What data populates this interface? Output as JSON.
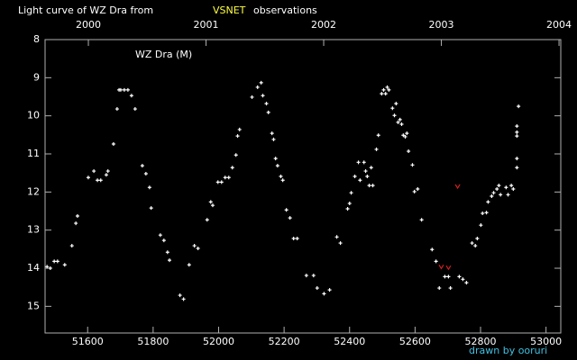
{
  "chart_data": {
    "type": "scatter",
    "title": "Light curve of WZ Dra from",
    "title_highlight": "VSNET",
    "title_end": "observations",
    "annotation": "WZ Dra (M)",
    "credit": "drawn by ooruri",
    "xlim": [
      51470,
      53045
    ],
    "xticks": [
      51600,
      51800,
      52000,
      52200,
      52400,
      52600,
      52800,
      53000
    ],
    "x2lim": [
      1999.632,
      2004.015
    ],
    "x2ticks": [
      2000,
      2001,
      2002,
      2003,
      2004
    ],
    "ylim": [
      8,
      15.7
    ],
    "y_inverted": true,
    "yticks": [
      8,
      9,
      10,
      11,
      12,
      13,
      14,
      15
    ],
    "series": [
      {
        "color": "#ffffff",
        "marker": "+",
        "x": [
          51476,
          51486,
          51498,
          51508,
          51530,
          51552,
          51564,
          51569,
          51602,
          51619,
          51630,
          51640,
          51657,
          51662,
          51679,
          51690,
          51696,
          51701,
          51712,
          51723,
          51734,
          51745,
          51767,
          51778,
          51789,
          51794,
          51822,
          51833,
          51844,
          51850,
          51882,
          51893,
          51910,
          51926,
          51937,
          51965,
          51976,
          51982,
          51998,
          52009,
          52020,
          52031,
          52042,
          52053,
          52058,
          52064,
          52102,
          52119,
          52130,
          52135,
          52146,
          52152,
          52163,
          52168,
          52174,
          52180,
          52190,
          52196,
          52207,
          52218,
          52229,
          52240,
          52268,
          52290,
          52301,
          52322,
          52339,
          52361,
          52372,
          52394,
          52400,
          52405,
          52416,
          52427,
          52432,
          52444,
          52449,
          52454,
          52460,
          52466,
          52471,
          52482,
          52488,
          52498,
          52504,
          52510,
          52515,
          52520,
          52531,
          52537,
          52542,
          52548,
          52554,
          52559,
          52564,
          52570,
          52575,
          52580,
          52592,
          52598,
          52608,
          52620,
          52652,
          52664,
          52674,
          52691,
          52702,
          52708,
          52735,
          52746,
          52757,
          52774,
          52784,
          52790,
          52801,
          52806,
          52818,
          52823,
          52834,
          52840,
          52850,
          52856,
          52861,
          52878,
          52884,
          52894,
          52900,
          52911,
          52911,
          52911,
          52911,
          52911,
          52916
        ],
        "values": [
          13.96,
          14.0,
          13.82,
          13.82,
          13.91,
          13.41,
          12.82,
          12.63,
          11.62,
          11.45,
          11.69,
          11.69,
          11.55,
          11.45,
          10.74,
          9.82,
          9.32,
          9.32,
          9.32,
          9.32,
          9.47,
          9.82,
          11.31,
          11.52,
          11.88,
          12.42,
          13.13,
          13.27,
          13.58,
          13.79,
          14.71,
          14.81,
          13.91,
          13.41,
          13.48,
          12.73,
          12.26,
          12.35,
          11.74,
          11.74,
          11.62,
          11.62,
          11.36,
          11.03,
          10.53,
          10.36,
          9.51,
          9.25,
          9.13,
          9.47,
          9.68,
          9.91,
          10.46,
          10.62,
          11.12,
          11.31,
          11.59,
          11.69,
          12.47,
          12.68,
          13.22,
          13.22,
          14.19,
          14.19,
          14.52,
          14.67,
          14.57,
          13.18,
          13.34,
          12.44,
          12.3,
          12.02,
          11.59,
          11.22,
          11.69,
          11.22,
          11.45,
          11.59,
          11.83,
          11.36,
          11.83,
          10.88,
          10.51,
          9.42,
          9.32,
          9.42,
          9.25,
          9.32,
          9.8,
          9.99,
          9.68,
          10.17,
          10.1,
          10.22,
          10.51,
          10.55,
          10.46,
          10.93,
          11.29,
          11.99,
          11.92,
          12.73,
          13.51,
          13.82,
          14.52,
          14.22,
          14.22,
          14.52,
          14.22,
          14.29,
          14.38,
          13.34,
          13.41,
          13.22,
          12.87,
          12.56,
          12.54,
          12.26,
          12.11,
          12.02,
          11.92,
          11.83,
          12.07,
          11.88,
          12.07,
          11.83,
          11.92,
          10.53,
          10.43,
          10.27,
          11.12,
          11.36,
          9.75
        ]
      },
      {
        "color": "#d02020",
        "marker": "v",
        "x": [
          52680,
          52702,
          52730
        ],
        "values": [
          13.96,
          13.98,
          11.85
        ]
      }
    ]
  }
}
